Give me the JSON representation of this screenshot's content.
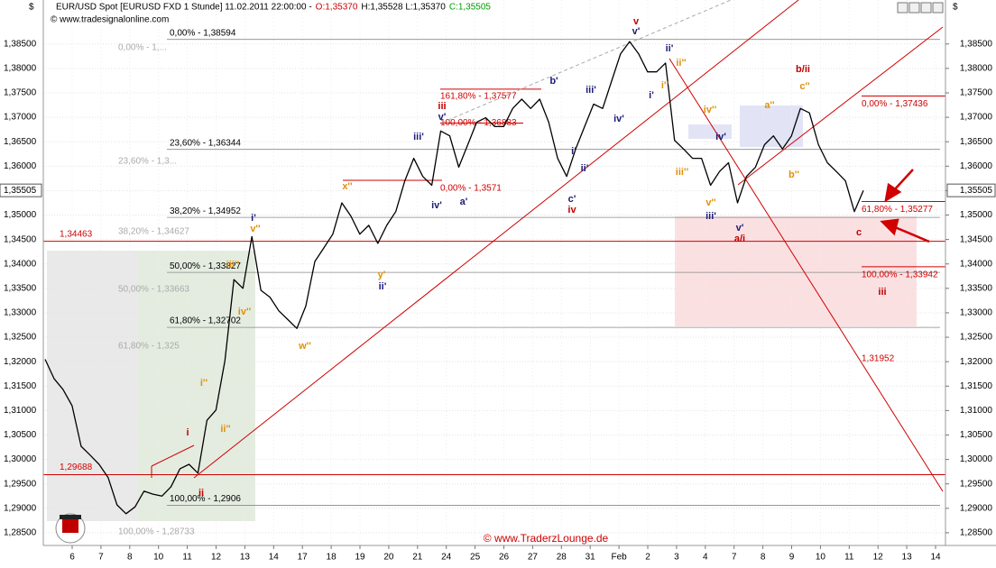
{
  "chart_data": {
    "type": "line",
    "currency": "$",
    "title": "EUR/USD Spot [EURUSD FXD  1 Stunde] 11.02.2011 22:00:00 -",
    "ohlc": [
      {
        "text": "O:1,35370",
        "color": "#d00000"
      },
      {
        "text": "H:1,35528 L:1,35370",
        "color": "#000000"
      },
      {
        "text": "C:1,35505",
        "color": "#00a000"
      }
    ],
    "source": "© www.tradesignalonline.com",
    "watermark": "© www.TraderzLounge.de",
    "x_labels": [
      "6",
      "7",
      "8",
      "10",
      "11",
      "12",
      "13",
      "14",
      "17",
      "18",
      "19",
      "20",
      "21",
      "24",
      "25",
      "26",
      "27",
      "28",
      "31",
      "Feb",
      "2",
      "3",
      "4",
      "7",
      "8",
      "9",
      "10",
      "11",
      "12",
      "13",
      "14"
    ],
    "color": "#000000",
    "values": [
      1.3205,
      1.3165,
      1.3143,
      1.311,
      1.3027,
      1.3009,
      1.299,
      1.2963,
      1.2907,
      1.2889,
      1.2903,
      1.2935,
      1.2929,
      1.2925,
      1.2944,
      1.2981,
      1.299,
      1.2972,
      1.308,
      1.3101,
      1.3202,
      1.3368,
      1.335,
      1.3456,
      1.3346,
      1.3332,
      1.3304,
      1.3286,
      1.3268,
      1.3314,
      1.3405,
      1.3433,
      1.3461,
      1.3525,
      1.3498,
      1.3461,
      1.3479,
      1.3442,
      1.3479,
      1.3507,
      1.357,
      1.3616,
      1.3579,
      1.3561,
      1.3672,
      1.3662,
      1.3598,
      1.3644,
      1.369,
      1.3699,
      1.3681,
      1.3681,
      1.3718,
      1.3737,
      1.3718,
      1.3737,
      1.369,
      1.3616,
      1.3579,
      1.3635,
      1.3681,
      1.3727,
      1.3718,
      1.3774,
      1.383,
      1.3855,
      1.383,
      1.3793,
      1.3793,
      1.3811,
      1.3653,
      1.3635,
      1.3616,
      1.3616,
      1.3561,
      1.3589,
      1.3607,
      1.3525,
      1.3579,
      1.3598,
      1.3644,
      1.3662,
      1.3635,
      1.3662,
      1.3718,
      1.3709,
      1.3644,
      1.3607,
      1.3589,
      1.357,
      1.3507,
      1.35505
    ],
    "last_price": {
      "value": 1.35505,
      "label": "1,35505"
    },
    "ylim": [
      1.2824,
      1.394
    ],
    "yticks": [
      {
        "value": 1.285,
        "label": "1,28500"
      },
      {
        "value": 1.29,
        "label": "1,29000"
      },
      {
        "value": 1.295,
        "label": "1,29500"
      },
      {
        "value": 1.3,
        "label": "1,30000"
      },
      {
        "value": 1.305,
        "label": "1,30500"
      },
      {
        "value": 1.31,
        "label": "1,31000"
      },
      {
        "value": 1.315,
        "label": "1,31500"
      },
      {
        "value": 1.32,
        "label": "1,32000"
      },
      {
        "value": 1.325,
        "label": "1,32500"
      },
      {
        "value": 1.33,
        "label": "1,33000"
      },
      {
        "value": 1.335,
        "label": "1,33500"
      },
      {
        "value": 1.34,
        "label": "1,34000"
      },
      {
        "value": 1.345,
        "label": "1,34500"
      },
      {
        "value": 1.35,
        "label": "1,35000"
      },
      {
        "value": 1.355,
        "label": "1,35500"
      },
      {
        "value": 1.36,
        "label": "1,36000"
      },
      {
        "value": 1.365,
        "label": "1,36500"
      },
      {
        "value": 1.37,
        "label": "1,37000"
      },
      {
        "value": 1.375,
        "label": "1,37500"
      },
      {
        "value": 1.38,
        "label": "1,38000"
      },
      {
        "value": 1.385,
        "label": "1,38500"
      }
    ],
    "grid": true,
    "fib_levels": [
      {
        "value": 1.38594,
        "label": "0,00% - 1,38594"
      },
      {
        "value": 1.36344,
        "label": "23,60% - 1,36344"
      },
      {
        "value": 1.34952,
        "label": "38,20% - 1,34952"
      },
      {
        "value": 1.33827,
        "label": "50,00% - 1,33827"
      },
      {
        "value": 1.32702,
        "label": "61,80% - 1,32702"
      },
      {
        "value": 1.2906,
        "label": "100,00% - 1,2906"
      }
    ],
    "fib_color": "#888888",
    "red_levels": [
      {
        "value": 1.34463,
        "label": "1,34463"
      },
      {
        "value": 1.29688,
        "label": "1,29688"
      },
      {
        "value": 1.37577,
        "label": "161,80% - 1,37577"
      },
      {
        "value": 1.36883,
        "label": "100,00% - 1,36883"
      },
      {
        "value": 1.3571,
        "label": "0,00% - 1,3571"
      },
      {
        "value": 1.37436,
        "label": "0,00% - 1,37436"
      },
      {
        "value": 1.35277,
        "label": "61,80% - 1,35277"
      },
      {
        "value": 1.33942,
        "label": "100,00% - 1,33942"
      },
      {
        "value": 1.31952,
        "label": "1,31952"
      }
    ],
    "red_color": "#d00000",
    "gray_labels": [
      "0,00% - 1,...",
      "23,60% - 1,3...",
      "38,20% - 1,34627",
      "50,00% - 1,33663",
      "61,80% - 1,325",
      "100,00% - 1,28733"
    ],
    "annotations": [
      {
        "text": "v",
        "color": "#c00000"
      },
      {
        "text": "v'",
        "color": "#1c1c7a"
      },
      {
        "text": "ii'",
        "color": "#1c1c7a"
      },
      {
        "text": "ii''",
        "color": "#e0900a"
      },
      {
        "text": "i''",
        "color": "#e0900a"
      },
      {
        "text": "i'",
        "color": "#1c1c7a"
      },
      {
        "text": "b'",
        "color": "#1c1c7a"
      },
      {
        "text": "iii'",
        "color": "#1c1c7a"
      },
      {
        "text": "iv'",
        "color": "#1c1c7a"
      },
      {
        "text": "iii",
        "color": "#c00000"
      },
      {
        "text": "v'",
        "color": "#1c1c7a"
      },
      {
        "text": "iii'",
        "color": "#1c1c7a"
      },
      {
        "text": "iv'",
        "color": "#1c1c7a"
      },
      {
        "text": "a'",
        "color": "#1c1c7a"
      },
      {
        "text": "i'",
        "color": "#1c1c7a"
      },
      {
        "text": "ii'",
        "color": "#1c1c7a"
      },
      {
        "text": "c'",
        "color": "#1c1c7a"
      },
      {
        "text": "iv",
        "color": "#c00000"
      },
      {
        "text": "x''",
        "color": "#e0900a"
      },
      {
        "text": "i'",
        "color": "#1c1c7a"
      },
      {
        "text": "v''",
        "color": "#e0900a"
      },
      {
        "text": "iii''",
        "color": "#e0900a"
      },
      {
        "text": "y'",
        "color": "#e0900a"
      },
      {
        "text": "ii'",
        "color": "#1c1c7a"
      },
      {
        "text": "iv''",
        "color": "#e0900a"
      },
      {
        "text": "w''",
        "color": "#e0900a"
      },
      {
        "text": "i''",
        "color": "#e0900a"
      },
      {
        "text": "ii''",
        "color": "#e0900a"
      },
      {
        "text": "i",
        "color": "#c00000"
      },
      {
        "text": "ii",
        "color": "#c00000"
      },
      {
        "text": "iv''",
        "color": "#e0900a"
      },
      {
        "text": "iv'",
        "color": "#1c1c7a"
      },
      {
        "text": "iii''",
        "color": "#e0900a"
      },
      {
        "text": "v''",
        "color": "#e0900a"
      },
      {
        "text": "iii'",
        "color": "#1c1c7a"
      },
      {
        "text": "v'",
        "color": "#1c1c7a"
      },
      {
        "text": "a/i",
        "color": "#c00000"
      },
      {
        "text": "b/ii",
        "color": "#c00000"
      },
      {
        "text": "c''",
        "color": "#e0900a"
      },
      {
        "text": "a''",
        "color": "#e0900a"
      },
      {
        "text": "b''",
        "color": "#e0900a"
      },
      {
        "text": "c",
        "color": "#c00000"
      },
      {
        "text": "iii",
        "color": "#c00000"
      }
    ]
  }
}
